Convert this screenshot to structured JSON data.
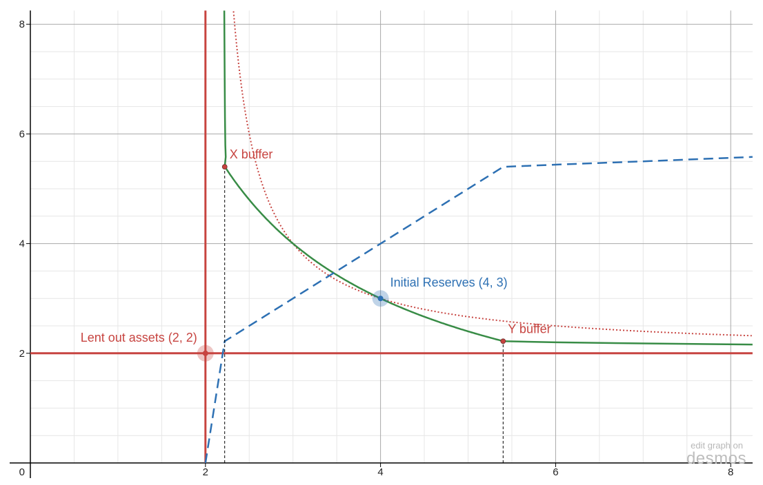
{
  "chart_data": {
    "type": "line",
    "title": "",
    "xlabel": "",
    "ylabel": "",
    "xlim": [
      0,
      8.25
    ],
    "ylim": [
      0,
      8.25
    ],
    "grid": true,
    "x_ticks": [
      2,
      4,
      6,
      8
    ],
    "y_ticks": [
      2,
      4,
      6,
      8
    ],
    "origin_label": "0",
    "colors": {
      "red": "#c74440",
      "green": "#388c46",
      "blue": "#2d70b3",
      "black": "#000000"
    },
    "series": [
      {
        "kind": "line-vertical",
        "x": 2,
        "color": "#c74440",
        "style": "solid"
      },
      {
        "kind": "line-horizontal",
        "y": 2,
        "color": "#c74440",
        "style": "solid"
      },
      {
        "kind": "curve",
        "equation": "(x-2)(y-2)=2",
        "color": "#c74440",
        "style": "dotted"
      },
      {
        "kind": "curve",
        "equation": "xy=12 on [2.22, 5.4]",
        "color": "#388c46",
        "style": "solid"
      },
      {
        "kind": "polyline",
        "color": "#388c46",
        "style": "solid",
        "points": [
          [
            2.215,
            8.25
          ],
          [
            2.217,
            7.8
          ],
          [
            2.22,
            7.0
          ],
          [
            2.223,
            6.3
          ],
          [
            2.227,
            5.8
          ],
          [
            2.232,
            5.58
          ],
          [
            2.22,
            5.4
          ]
        ]
      },
      {
        "kind": "polyline",
        "color": "#388c46",
        "style": "solid",
        "points": [
          [
            5.4,
            2.22
          ],
          [
            6.0,
            2.2
          ],
          [
            7.0,
            2.18
          ],
          [
            8.25,
            2.16
          ]
        ]
      },
      {
        "kind": "polyline",
        "color": "#2d70b3",
        "style": "dashed",
        "points": [
          [
            2,
            0
          ],
          [
            2.22,
            2.22
          ],
          [
            5.4,
            5.4
          ],
          [
            6.0,
            5.44
          ],
          [
            7.0,
            5.5
          ],
          [
            8.25,
            5.58
          ]
        ]
      },
      {
        "kind": "segment",
        "color": "#000000",
        "style": "dashed-thin",
        "points": [
          [
            2.22,
            0
          ],
          [
            2.22,
            5.4
          ]
        ]
      },
      {
        "kind": "segment",
        "color": "#000000",
        "style": "dashed-thin",
        "points": [
          [
            5.4,
            0
          ],
          [
            5.4,
            2.22
          ]
        ]
      }
    ],
    "points": [
      {
        "x": 2,
        "y": 2,
        "color": "#c74440",
        "label": "Lent out assets (2, 2)",
        "highlight": true,
        "label_pos": "left-above"
      },
      {
        "x": 4,
        "y": 3,
        "color": "#2d70b3",
        "label": "Initial Reserves (4, 3)",
        "highlight": true,
        "label_pos": "right-above"
      },
      {
        "x": 2.22,
        "y": 5.4,
        "color": "#c74440",
        "label": "X buffer",
        "highlight": false,
        "label_pos": "right-above"
      },
      {
        "x": 5.4,
        "y": 2.22,
        "color": "#c74440",
        "label": "Y buffer",
        "highlight": false,
        "label_pos": "right-above"
      }
    ]
  },
  "watermark": {
    "edit_text": "edit graph on",
    "brand": "desmos"
  }
}
